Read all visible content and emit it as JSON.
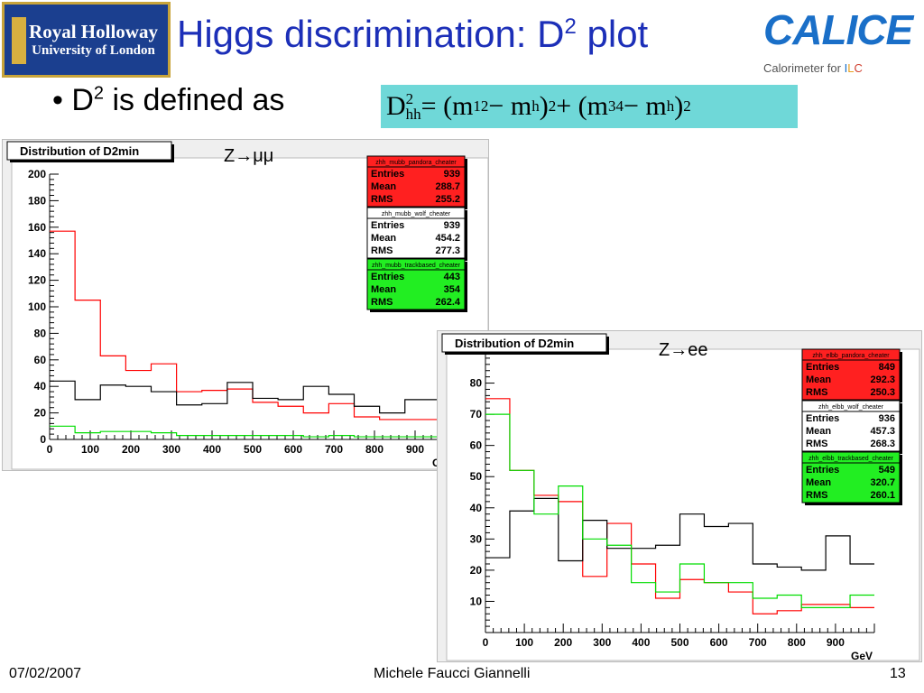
{
  "logo": {
    "line1": "Royal Holloway",
    "line2": "University of London"
  },
  "slide_title": "Higgs discrimination: D",
  "slide_title_sup": "2",
  "title_suffix": " plot",
  "calice": {
    "word": "CALICE",
    "sub_prefix": "Calorimeter for ",
    "sub_i": "I",
    "sub_l": "L",
    "sub_c": "C"
  },
  "bullet": {
    "prefix": "D",
    "sup": "2",
    "text": " is defined as"
  },
  "formula": {
    "lhs": "D",
    "lhs_sup": "2",
    "lhs_sub": "hh",
    "rhs": " = (m",
    "sub12": "12",
    "mid1": " − m",
    "subh1": "h",
    "close1": ")",
    "sq1": "2",
    "plus": " + (m",
    "sub34": "34",
    "mid2": " − m",
    "subh2": "h",
    "close2": ")",
    "sq2": "2"
  },
  "footer": {
    "date": "07/02/2007",
    "author": "Michele Faucci Giannelli",
    "page": "13"
  },
  "colors": {
    "title_blue": "#1c2fb8",
    "red_series": "#ff0000",
    "green_series": "#00dd00",
    "black_series": "#000000",
    "formula_bg": "#6fd8d8"
  },
  "chart_data": [
    {
      "type": "histogram",
      "title": "Distribution of D2min",
      "annotation": "Z→μμ",
      "xlabel": "GeV",
      "xlim": [
        0,
        1000
      ],
      "ylim": [
        0,
        200
      ],
      "x_ticks": [
        0,
        100,
        200,
        300,
        400,
        500,
        600,
        700,
        800,
        900
      ],
      "y_ticks": [
        0,
        20,
        40,
        60,
        80,
        100,
        120,
        140,
        160,
        180,
        200
      ],
      "bin_edges": [
        0,
        62.5,
        125,
        187.5,
        250,
        312.5,
        375,
        437.5,
        500,
        562.5,
        625,
        687.5,
        750,
        812.5,
        875,
        937.5,
        1000
      ],
      "series": [
        {
          "name": "zhh_mubb_pandora_cheater",
          "color": "#ff0000",
          "values": [
            157,
            105,
            63,
            52,
            57,
            36,
            37,
            38,
            28,
            25,
            20,
            27,
            17,
            15,
            15,
            15
          ],
          "stats": {
            "entries": "939",
            "mean": "288.7",
            "rms": "255.2"
          }
        },
        {
          "name": "zhh_mubb_wolf_cheater",
          "color": "#000000",
          "values": [
            44,
            30,
            41,
            40,
            36,
            26,
            27,
            43,
            31,
            30,
            40,
            34,
            25,
            20,
            30,
            30
          ],
          "stats": {
            "entries": "939",
            "mean": "454.2",
            "rms": "277.3"
          }
        },
        {
          "name": "zhh_mubb_trackbased_cheater",
          "color": "#00dd00",
          "values": [
            10,
            5,
            6,
            6,
            5,
            3,
            3,
            3,
            3,
            3,
            2,
            3,
            2,
            2,
            2,
            2
          ],
          "stats": {
            "entries": "443",
            "mean": "354",
            "rms": "262.4"
          }
        }
      ],
      "stat_labels": {
        "entries": "Entries",
        "mean": "Mean",
        "rms": "RMS"
      }
    },
    {
      "type": "histogram",
      "title": "Distribution of D2min",
      "annotation": "Z→ee",
      "xlabel": "GeV",
      "xlim": [
        0,
        1000
      ],
      "ylim": [
        0,
        90
      ],
      "x_ticks": [
        0,
        100,
        200,
        300,
        400,
        500,
        600,
        700,
        800,
        900
      ],
      "y_ticks": [
        10,
        20,
        30,
        40,
        50,
        60,
        70,
        80
      ],
      "bin_edges": [
        0,
        62.5,
        125,
        187.5,
        250,
        312.5,
        375,
        437.5,
        500,
        562.5,
        625,
        687.5,
        750,
        812.5,
        875,
        937.5,
        1000
      ],
      "series": [
        {
          "name": "zhh_elbb_pandora_cheater",
          "color": "#ff0000",
          "values": [
            75,
            52,
            44,
            42,
            18,
            35,
            22,
            11,
            17,
            16,
            13,
            6,
            7,
            9,
            9,
            8
          ],
          "stats": {
            "entries": "849",
            "mean": "292.3",
            "rms": "250.3"
          }
        },
        {
          "name": "zhh_elbb_wolf_cheater",
          "color": "#000000",
          "values": [
            24,
            39,
            43,
            23,
            36,
            27,
            27,
            28,
            38,
            34,
            35,
            22,
            21,
            20,
            31,
            22
          ],
          "stats": {
            "entries": "936",
            "mean": "457.3",
            "rms": "268.3"
          }
        },
        {
          "name": "zhh_elbb_trackbased_cheater",
          "color": "#00dd00",
          "values": [
            70,
            52,
            38,
            47,
            30,
            28,
            16,
            13,
            22,
            16,
            16,
            11,
            12,
            8,
            8,
            12
          ],
          "stats": {
            "entries": "549",
            "mean": "320.7",
            "rms": "260.1"
          }
        }
      ],
      "stat_labels": {
        "entries": "Entries",
        "mean": "Mean",
        "rms": "RMS"
      }
    }
  ]
}
